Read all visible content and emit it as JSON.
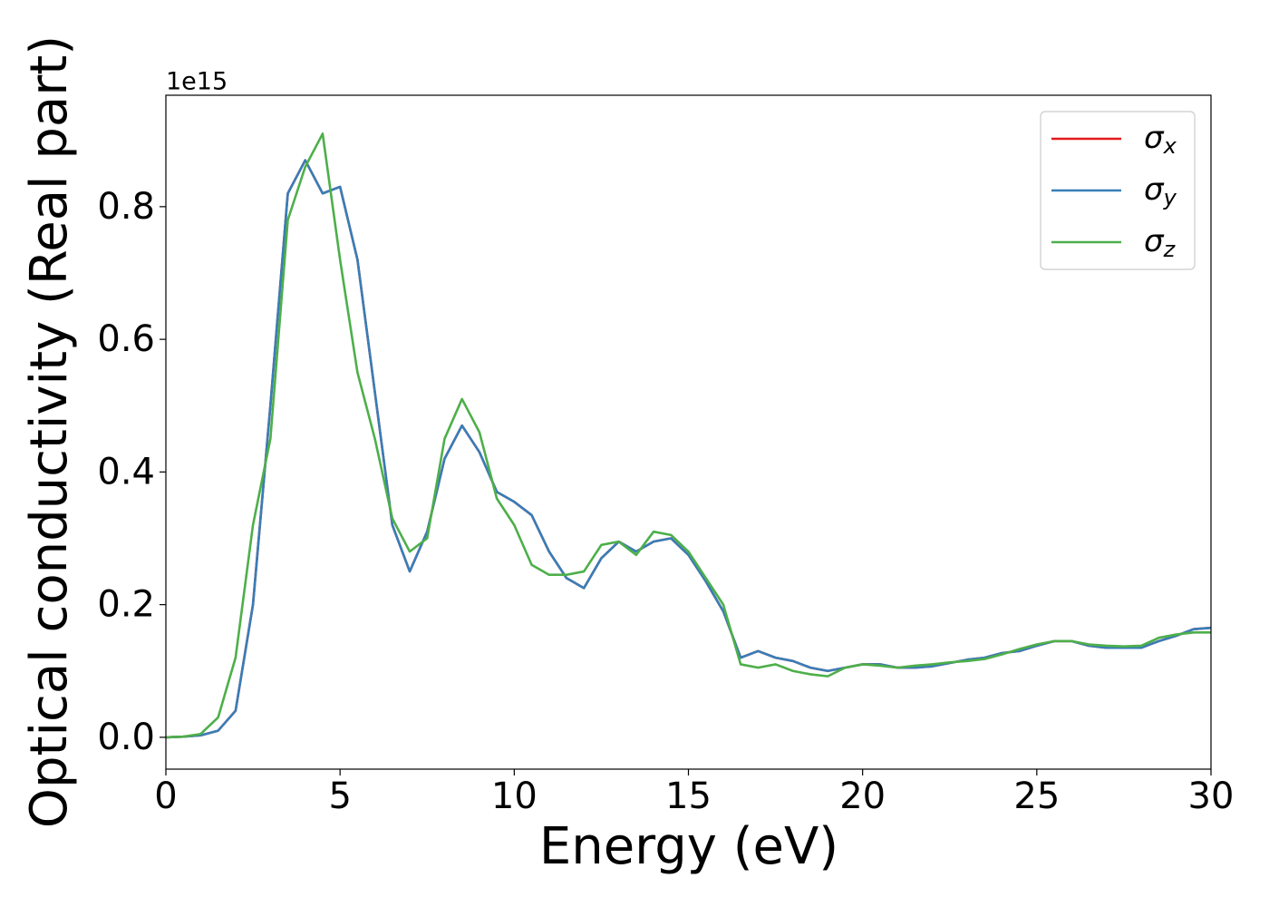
{
  "chart_data": {
    "type": "line",
    "xlabel": "Energy (eV)",
    "ylabel": "Optical conductivity (Real part)",
    "y_offset_label": "1e15",
    "x": [
      0,
      0.5,
      1,
      1.5,
      2,
      2.5,
      3,
      3.5,
      4,
      4.5,
      5,
      5.5,
      6,
      6.5,
      7,
      7.5,
      8,
      8.5,
      9,
      9.5,
      10,
      10.5,
      11,
      11.5,
      12,
      12.5,
      13,
      13.5,
      14,
      14.5,
      15,
      15.5,
      16,
      16.5,
      17,
      17.5,
      18,
      18.5,
      19,
      19.5,
      20,
      20.5,
      21,
      21.5,
      22,
      22.5,
      23,
      23.5,
      24,
      24.5,
      25,
      25.5,
      26,
      26.5,
      27,
      27.5,
      28,
      28.5,
      29,
      29.5,
      30
    ],
    "series": [
      {
        "name": "σx",
        "color": "#e41a1c",
        "values": [
          0,
          0.001,
          0.003,
          0.01,
          0.04,
          0.2,
          0.5,
          0.82,
          0.87,
          0.82,
          0.83,
          0.72,
          0.52,
          0.32,
          0.25,
          0.31,
          0.42,
          0.47,
          0.43,
          0.37,
          0.355,
          0.335,
          0.28,
          0.24,
          0.225,
          0.27,
          0.295,
          0.28,
          0.295,
          0.3,
          0.275,
          0.235,
          0.19,
          0.12,
          0.13,
          0.12,
          0.115,
          0.105,
          0.1,
          0.105,
          0.11,
          0.11,
          0.105,
          0.105,
          0.107,
          0.112,
          0.117,
          0.12,
          0.127,
          0.13,
          0.138,
          0.145,
          0.145,
          0.138,
          0.135,
          0.135,
          0.135,
          0.145,
          0.153,
          0.163,
          0.165
        ]
      },
      {
        "name": "σy",
        "color": "#377eb8",
        "values": [
          0,
          0.001,
          0.003,
          0.01,
          0.04,
          0.2,
          0.5,
          0.82,
          0.87,
          0.82,
          0.83,
          0.72,
          0.52,
          0.32,
          0.25,
          0.31,
          0.42,
          0.47,
          0.43,
          0.37,
          0.355,
          0.335,
          0.28,
          0.24,
          0.225,
          0.27,
          0.295,
          0.28,
          0.295,
          0.3,
          0.275,
          0.235,
          0.19,
          0.12,
          0.13,
          0.12,
          0.115,
          0.105,
          0.1,
          0.105,
          0.11,
          0.11,
          0.105,
          0.105,
          0.107,
          0.112,
          0.117,
          0.12,
          0.127,
          0.13,
          0.138,
          0.145,
          0.145,
          0.138,
          0.135,
          0.135,
          0.135,
          0.145,
          0.153,
          0.163,
          0.165
        ]
      },
      {
        "name": "σz",
        "color": "#4daf4a",
        "values": [
          0,
          0.001,
          0.005,
          0.03,
          0.12,
          0.32,
          0.45,
          0.78,
          0.86,
          0.91,
          0.72,
          0.55,
          0.45,
          0.33,
          0.28,
          0.3,
          0.45,
          0.51,
          0.46,
          0.36,
          0.32,
          0.26,
          0.245,
          0.245,
          0.25,
          0.29,
          0.295,
          0.275,
          0.31,
          0.305,
          0.28,
          0.24,
          0.2,
          0.11,
          0.105,
          0.11,
          0.1,
          0.095,
          0.092,
          0.105,
          0.11,
          0.108,
          0.105,
          0.108,
          0.11,
          0.113,
          0.115,
          0.118,
          0.125,
          0.133,
          0.14,
          0.145,
          0.145,
          0.14,
          0.138,
          0.137,
          0.138,
          0.15,
          0.155,
          0.158,
          0.158
        ]
      }
    ],
    "xlim": [
      0,
      30
    ],
    "xticks": [
      0,
      5,
      10,
      15,
      20,
      25,
      30
    ],
    "ylim": [
      -0.048,
      0.968
    ],
    "yticks": [
      {
        "value": 0,
        "label": "0.0"
      },
      0.2,
      0.4,
      0.6,
      0.8
    ],
    "grid": false,
    "legend": "upper right"
  }
}
